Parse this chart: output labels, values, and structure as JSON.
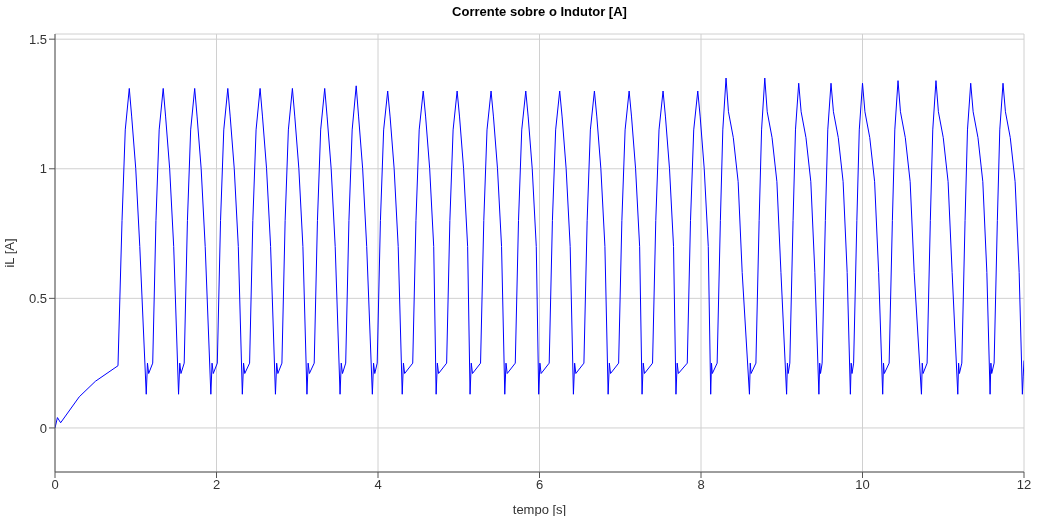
{
  "chart_data": {
    "type": "line",
    "title": "Corrente sobre o Indutor [A]",
    "xlabel": "tempo [s]",
    "ylabel": "iL [A]",
    "xlim": [
      0,
      12
    ],
    "xticks": [
      0,
      2,
      4,
      6,
      8,
      10,
      12
    ],
    "ylim": [
      -0.17,
      1.52
    ],
    "yticks": [
      0,
      0.5,
      1,
      1.5
    ],
    "grid": true,
    "marker": "none",
    "line_style": "solid",
    "series": [
      {
        "color": "#0000ff",
        "x": [
          0,
          0.03,
          0.05,
          0.07,
          0.3,
          0.5,
          0.78,
          0.83,
          0.87,
          0.92,
          0.95,
          1.0,
          1.05,
          1.13,
          1.145,
          1.16,
          1.21,
          1.25,
          1.29,
          1.34,
          1.37,
          1.42,
          1.47,
          1.53,
          1.545,
          1.56,
          1.6,
          1.64,
          1.68,
          1.73,
          1.76,
          1.81,
          1.86,
          1.93,
          1.945,
          1.96,
          2.01,
          2.05,
          2.09,
          2.14,
          2.17,
          2.22,
          2.27,
          2.32,
          2.335,
          2.35,
          2.41,
          2.45,
          2.49,
          2.54,
          2.57,
          2.62,
          2.67,
          2.73,
          2.745,
          2.76,
          2.81,
          2.85,
          2.89,
          2.94,
          2.97,
          3.02,
          3.07,
          3.12,
          3.135,
          3.15,
          3.21,
          3.25,
          3.29,
          3.34,
          3.37,
          3.42,
          3.47,
          3.53,
          3.545,
          3.56,
          3.6,
          3.64,
          3.68,
          3.73,
          3.76,
          3.81,
          3.86,
          3.93,
          3.945,
          3.96,
          3.99,
          4.03,
          4.07,
          4.12,
          4.15,
          4.2,
          4.25,
          4.3,
          4.315,
          4.33,
          4.43,
          4.47,
          4.51,
          4.56,
          4.59,
          4.64,
          4.69,
          4.72,
          4.735,
          4.75,
          4.85,
          4.89,
          4.93,
          4.98,
          5.01,
          5.06,
          5.11,
          5.14,
          5.155,
          5.17,
          5.27,
          5.31,
          5.35,
          5.4,
          5.43,
          5.48,
          5.53,
          5.57,
          5.585,
          5.6,
          5.7,
          5.74,
          5.78,
          5.83,
          5.86,
          5.91,
          5.96,
          5.99,
          6.005,
          6.02,
          6.12,
          6.16,
          6.2,
          6.25,
          6.28,
          6.33,
          6.38,
          6.42,
          6.435,
          6.45,
          6.55,
          6.59,
          6.63,
          6.68,
          6.71,
          6.76,
          6.81,
          6.85,
          6.865,
          6.88,
          6.98,
          7.02,
          7.06,
          7.11,
          7.14,
          7.19,
          7.24,
          7.27,
          7.285,
          7.3,
          7.4,
          7.44,
          7.48,
          7.53,
          7.56,
          7.61,
          7.66,
          7.69,
          7.705,
          7.72,
          7.83,
          7.87,
          7.91,
          7.96,
          7.99,
          8.04,
          8.09,
          8.12,
          8.13,
          8.14,
          8.2,
          8.24,
          8.27,
          8.31,
          8.34,
          8.4,
          8.46,
          8.51,
          8.6,
          8.61,
          8.62,
          8.68,
          8.72,
          8.75,
          8.79,
          8.82,
          8.88,
          8.94,
          8.99,
          9.06,
          9.07,
          9.08,
          9.1,
          9.14,
          9.17,
          9.21,
          9.24,
          9.3,
          9.36,
          9.41,
          9.46,
          9.47,
          9.48,
          9.5,
          9.54,
          9.57,
          9.61,
          9.64,
          9.7,
          9.76,
          9.81,
          9.85,
          9.86,
          9.87,
          9.89,
          9.93,
          9.96,
          10.0,
          10.03,
          10.09,
          10.15,
          10.2,
          10.25,
          10.26,
          10.27,
          10.33,
          10.37,
          10.4,
          10.44,
          10.47,
          10.53,
          10.59,
          10.64,
          10.73,
          10.74,
          10.75,
          10.8,
          10.84,
          10.87,
          10.91,
          10.94,
          11.0,
          11.06,
          11.11,
          11.18,
          11.19,
          11.2,
          11.23,
          11.27,
          11.3,
          11.34,
          11.37,
          11.43,
          11.49,
          11.54,
          11.58,
          11.59,
          11.6,
          11.63,
          11.67,
          11.7,
          11.74,
          11.77,
          11.83,
          11.89,
          11.94,
          11.98,
          11.99,
          12
        ],
        "values": [
          0,
          0.04,
          0.03,
          0.02,
          0.12,
          0.18,
          0.24,
          0.8,
          1.15,
          1.31,
          1.2,
          1.0,
          0.7,
          0.13,
          0.25,
          0.21,
          0.25,
          0.8,
          1.15,
          1.31,
          1.2,
          1.0,
          0.7,
          0.13,
          0.25,
          0.21,
          0.25,
          0.8,
          1.15,
          1.31,
          1.2,
          1.0,
          0.7,
          0.13,
          0.25,
          0.21,
          0.25,
          0.8,
          1.15,
          1.31,
          1.2,
          1.0,
          0.7,
          0.13,
          0.25,
          0.21,
          0.25,
          0.8,
          1.15,
          1.31,
          1.2,
          1.0,
          0.7,
          0.13,
          0.25,
          0.21,
          0.25,
          0.8,
          1.15,
          1.31,
          1.2,
          1.0,
          0.7,
          0.13,
          0.25,
          0.21,
          0.25,
          0.8,
          1.15,
          1.31,
          1.2,
          1.0,
          0.7,
          0.13,
          0.25,
          0.21,
          0.25,
          0.8,
          1.15,
          1.32,
          1.2,
          1.0,
          0.7,
          0.13,
          0.25,
          0.21,
          0.25,
          0.8,
          1.15,
          1.3,
          1.2,
          1.0,
          0.7,
          0.13,
          0.25,
          0.21,
          0.25,
          0.8,
          1.15,
          1.3,
          1.2,
          1.0,
          0.7,
          0.13,
          0.25,
          0.21,
          0.25,
          0.8,
          1.15,
          1.3,
          1.2,
          1.0,
          0.7,
          0.13,
          0.25,
          0.21,
          0.25,
          0.8,
          1.15,
          1.3,
          1.2,
          1.0,
          0.7,
          0.13,
          0.25,
          0.21,
          0.25,
          0.8,
          1.15,
          1.3,
          1.2,
          1.0,
          0.7,
          0.13,
          0.25,
          0.21,
          0.25,
          0.8,
          1.15,
          1.3,
          1.2,
          1.0,
          0.7,
          0.13,
          0.25,
          0.21,
          0.25,
          0.8,
          1.15,
          1.3,
          1.2,
          1.0,
          0.7,
          0.13,
          0.25,
          0.21,
          0.25,
          0.8,
          1.15,
          1.3,
          1.2,
          1.0,
          0.7,
          0.13,
          0.25,
          0.21,
          0.25,
          0.8,
          1.15,
          1.3,
          1.2,
          1.0,
          0.7,
          0.13,
          0.25,
          0.21,
          0.25,
          0.8,
          1.15,
          1.3,
          1.2,
          1.0,
          0.7,
          0.13,
          0.25,
          0.21,
          0.25,
          0.8,
          1.15,
          1.35,
          1.22,
          1.12,
          0.95,
          0.6,
          0.13,
          0.25,
          0.21,
          0.25,
          0.8,
          1.15,
          1.35,
          1.22,
          1.12,
          0.95,
          0.6,
          0.13,
          0.25,
          0.21,
          0.25,
          0.8,
          1.15,
          1.33,
          1.22,
          1.12,
          0.95,
          0.6,
          0.13,
          0.25,
          0.21,
          0.25,
          0.8,
          1.15,
          1.33,
          1.22,
          1.12,
          0.95,
          0.6,
          0.13,
          0.25,
          0.21,
          0.25,
          0.8,
          1.15,
          1.33,
          1.22,
          1.12,
          0.95,
          0.6,
          0.13,
          0.25,
          0.21,
          0.25,
          0.8,
          1.15,
          1.34,
          1.22,
          1.12,
          0.95,
          0.6,
          0.13,
          0.25,
          0.21,
          0.25,
          0.8,
          1.15,
          1.34,
          1.22,
          1.12,
          0.95,
          0.6,
          0.13,
          0.25,
          0.21,
          0.25,
          0.8,
          1.15,
          1.33,
          1.22,
          1.12,
          0.95,
          0.6,
          0.13,
          0.25,
          0.21,
          0.25,
          0.8,
          1.15,
          1.33,
          1.22,
          1.12,
          0.95,
          0.6,
          0.13,
          0.2,
          0.26
        ]
      }
    ]
  }
}
